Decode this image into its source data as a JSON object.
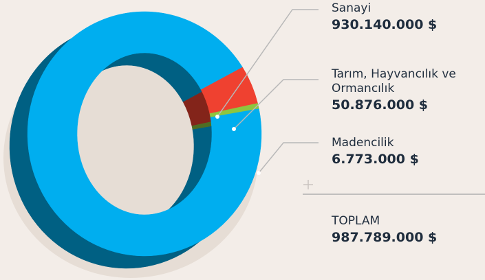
{
  "chart_data": {
    "type": "donut",
    "categories": [
      "Sanayi",
      "Tarım, Hayvancılık ve Ormancılık",
      "Madencilik"
    ],
    "values": [
      930140000,
      50876000,
      6773000
    ],
    "value_labels": [
      "930.140.000 $",
      "50.876.000 $",
      "6.773.000 $"
    ],
    "colors": [
      "#00aeef",
      "#ef4130",
      "#8dc63f"
    ],
    "total_label": "TOPLAM",
    "total": 987789000,
    "total_value_label": "987.789.000 $"
  }
}
